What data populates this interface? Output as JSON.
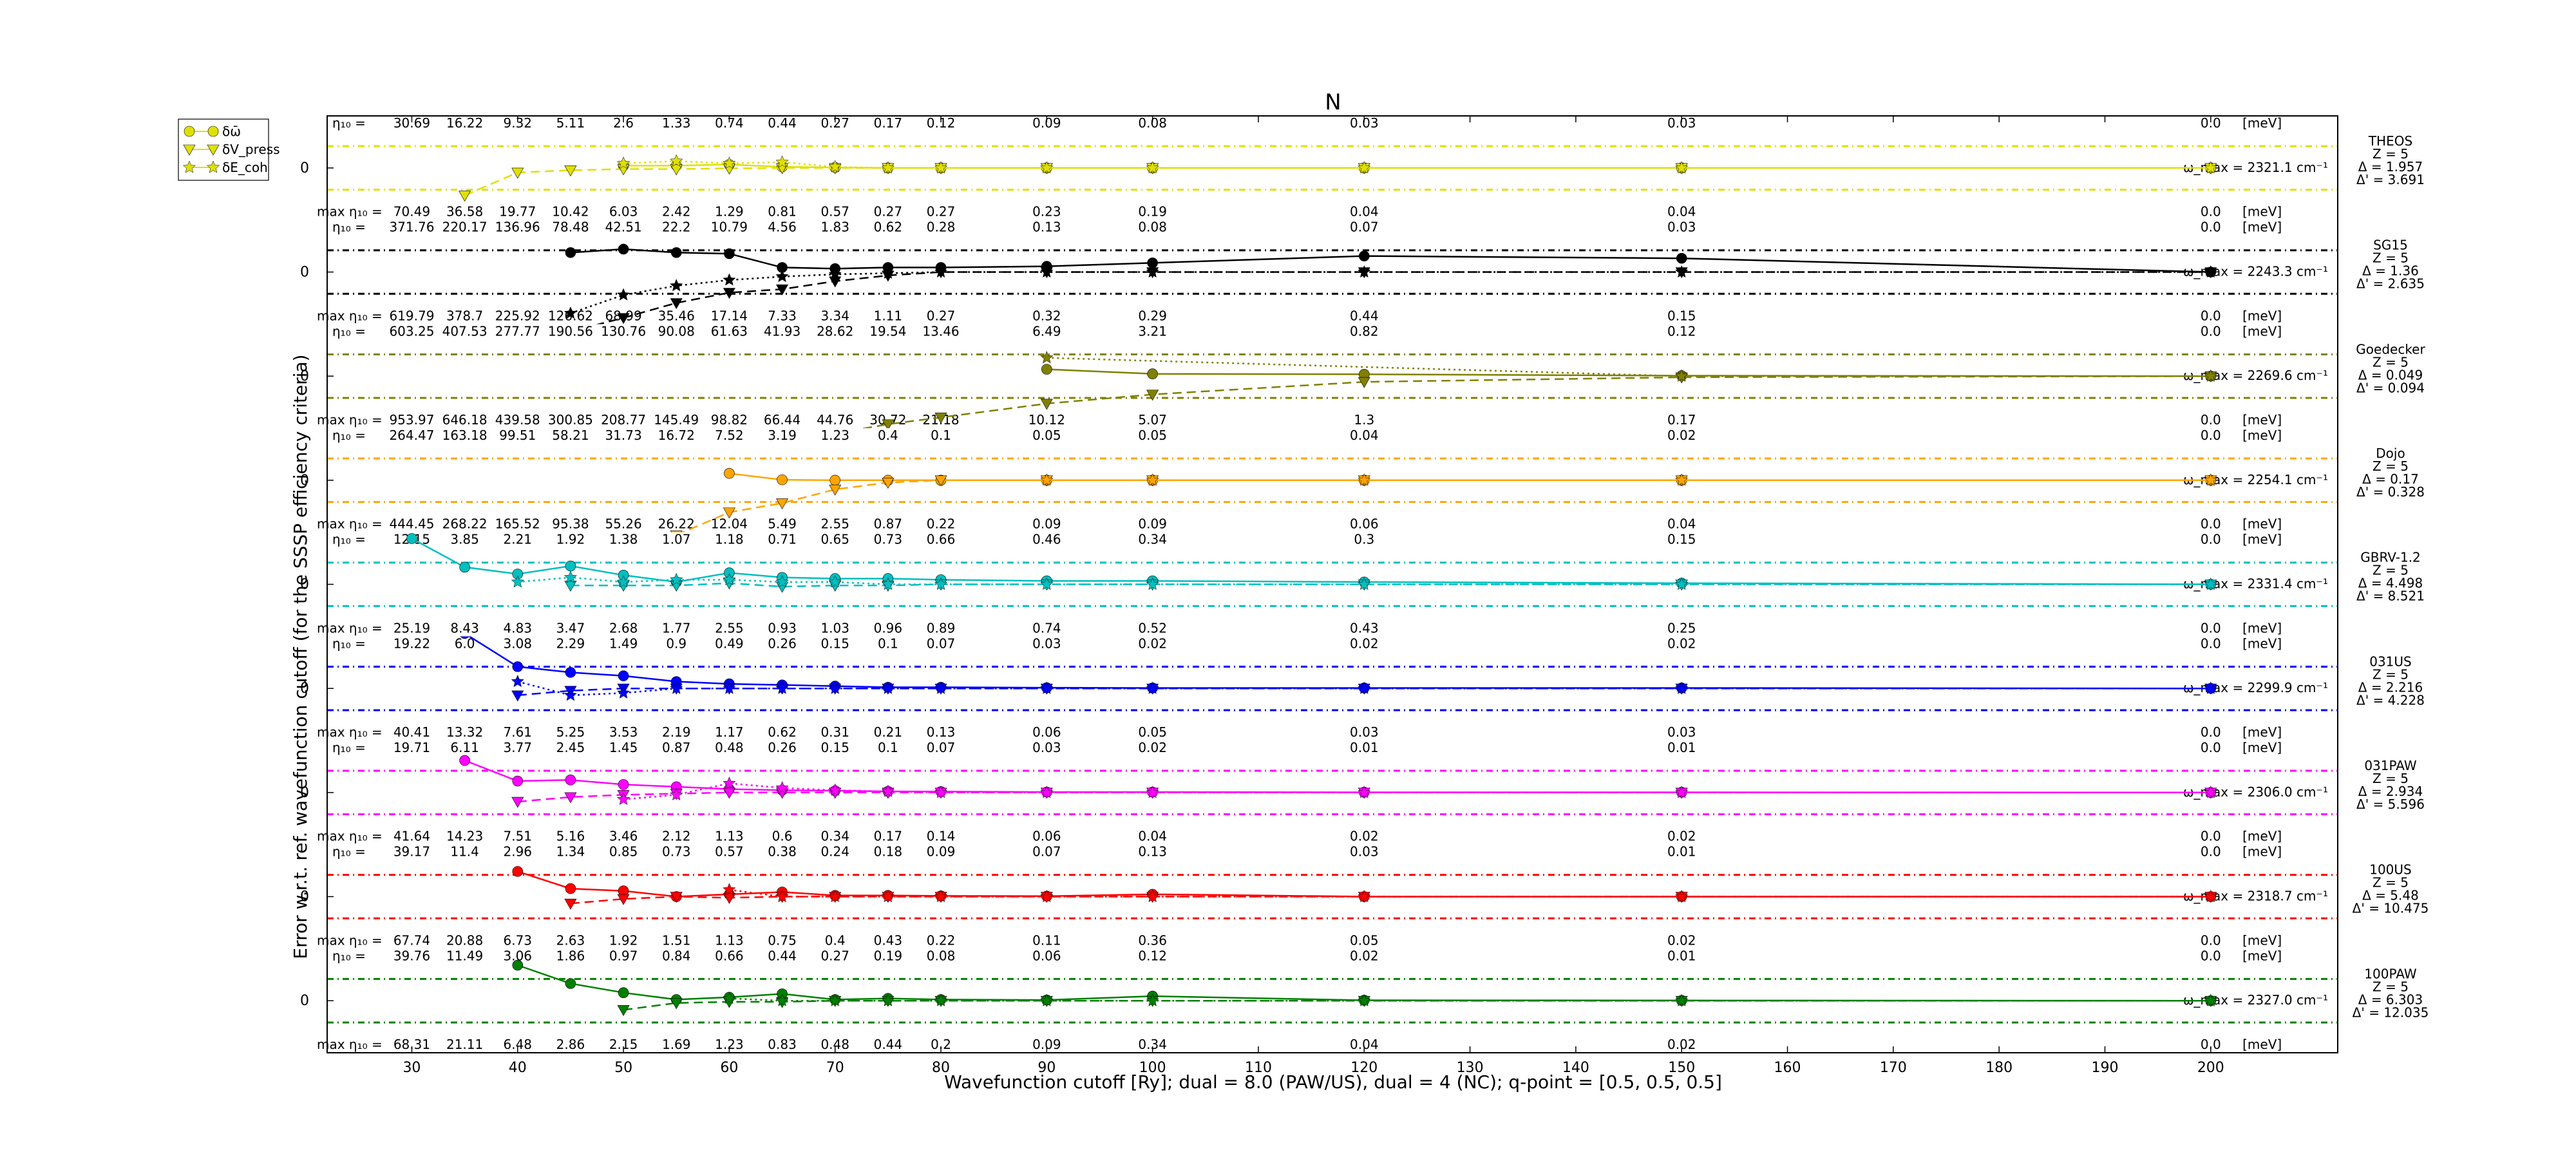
{
  "chart_data": {
    "type": "line",
    "title": "N",
    "xlabel": "Wavefunction cutoff [Ry]; dual = 8.0 (PAW/US), dual = 4 (NC); q-point = [0.5, 0.5, 0.5]",
    "ylabel": "Error w.r.t. ref. wavefunction cutoff (for the SSSP efficiency criteria)",
    "xlim": [
      22,
      212
    ],
    "xticks": [
      30,
      40,
      50,
      60,
      70,
      80,
      90,
      100,
      110,
      120,
      130,
      140,
      150,
      160,
      170,
      180,
      190,
      200
    ],
    "cutoffs": [
      30,
      35,
      40,
      45,
      50,
      55,
      60,
      65,
      70,
      75,
      80,
      90,
      100,
      120,
      150,
      200
    ],
    "legend": {
      "position": "outside-top-left",
      "entries": [
        "δω̄",
        "δV_press",
        "δE_coh"
      ]
    },
    "row_zero_label": "0",
    "unit_label": "[meV]",
    "eta_label": "η₁₀ =",
    "maxeta_label": "max η₁₀ =",
    "series": [
      {
        "name": "THEOS",
        "color": "#e0e000",
        "info": [
          "THEOS",
          "Z = 5",
          "Δ = 1.957",
          "Δ' = 3.691"
        ],
        "wmax": "ω_max = 2321.1 cm⁻¹",
        "eta": [
          "30.69",
          "16.22",
          "9.32",
          "5.11",
          "2.6",
          "1.33",
          "0.74",
          "0.44",
          "0.27",
          "0.17",
          "0.12",
          "0.09",
          "0.08",
          "0.03",
          "0.03",
          "0.0"
        ],
        "maxeta": [
          "70.49",
          "36.58",
          "19.77",
          "10.42",
          "6.03",
          "2.42",
          "1.29",
          "0.81",
          "0.57",
          "0.27",
          "0.27",
          "0.23",
          "0.19",
          "0.04",
          "0.04",
          "0.0"
        ],
        "phonon": [
          null,
          null,
          null,
          null,
          0.1,
          0.1,
          0.15,
          0.05,
          0.02,
          0.0,
          0.0,
          0.0,
          0.0,
          0.0,
          0.0,
          0.0
        ],
        "pressure": [
          null,
          -1.2,
          -0.2,
          -0.1,
          -0.05,
          -0.05,
          -0.02,
          0.0,
          0.0,
          0.0,
          0.0,
          0.0,
          0.0,
          0.0,
          0.0,
          0.0
        ],
        "cohesive": [
          null,
          null,
          null,
          null,
          0.2,
          0.3,
          0.2,
          0.25,
          0.05,
          0.0,
          0.0,
          0.0,
          0.0,
          0.0,
          0.0,
          0.0
        ]
      },
      {
        "name": "SG15",
        "color": "#000000",
        "info": [
          "SG15",
          "Z = 5",
          "Δ = 1.36",
          "Δ' = 2.635"
        ],
        "wmax": "ω_max = 2243.3 cm⁻¹",
        "eta": [
          "371.76",
          "220.17",
          "136.96",
          "78.48",
          "42.51",
          "22.2",
          "10.79",
          "4.56",
          "1.83",
          "0.62",
          "0.28",
          "0.13",
          "0.08",
          "0.07",
          "0.03",
          "0.0"
        ],
        "maxeta": [
          "619.79",
          "378.7",
          "225.92",
          "126.62",
          "68.99",
          "35.46",
          "17.14",
          "7.33",
          "3.34",
          "1.11",
          "0.27",
          "0.32",
          "0.29",
          "0.44",
          "0.15",
          "0.0"
        ],
        "phonon": [
          null,
          null,
          null,
          0.85,
          1.0,
          0.85,
          0.8,
          0.2,
          0.15,
          0.2,
          0.2,
          0.25,
          0.4,
          0.7,
          0.6,
          0.0
        ],
        "pressure": [
          -2.6,
          -2.6,
          -2.6,
          -2.6,
          -2.0,
          -1.35,
          -0.9,
          -0.75,
          -0.4,
          -0.15,
          0.0,
          0.0,
          0.0,
          0.0,
          0.0,
          0.0
        ],
        "cohesive": [
          null,
          null,
          null,
          -1.8,
          -1.0,
          -0.6,
          -0.35,
          -0.2,
          -0.1,
          -0.05,
          0.0,
          0.0,
          0.0,
          0.0,
          0.0,
          0.0
        ]
      },
      {
        "name": "Goedecker",
        "color": "#808000",
        "info": [
          "Goedecker",
          "Z = 5",
          "Δ = 0.049",
          "Δ' = 0.094"
        ],
        "wmax": "ω_max = 2269.6 cm⁻¹",
        "eta": [
          "603.25",
          "407.53",
          "277.77",
          "190.56",
          "130.76",
          "90.08",
          "61.63",
          "41.93",
          "28.62",
          "19.54",
          "13.46",
          "6.49",
          "3.21",
          "0.82",
          "0.12",
          "0.0"
        ],
        "maxeta": [
          "953.97",
          "646.18",
          "439.58",
          "300.85",
          "208.77",
          "145.49",
          "98.82",
          "66.44",
          "44.76",
          "30.72",
          "21.18",
          "10.12",
          "5.07",
          "1.3",
          "0.17",
          "0.0"
        ],
        "phonon": [
          null,
          null,
          null,
          null,
          null,
          null,
          null,
          null,
          null,
          null,
          null,
          0.3,
          0.1,
          0.08,
          0.02,
          0.0
        ],
        "pressure": [
          null,
          null,
          null,
          null,
          null,
          null,
          null,
          null,
          -2.5,
          -2.1,
          -1.8,
          -1.2,
          -0.8,
          -0.25,
          -0.05,
          0.0
        ],
        "cohesive": [
          null,
          null,
          null,
          null,
          null,
          null,
          null,
          null,
          null,
          null,
          null,
          0.8,
          null,
          null,
          0.0,
          0.0
        ]
      },
      {
        "name": "Dojo",
        "color": "#ffa500",
        "info": [
          "Dojo",
          "Z = 5",
          "Δ = 0.17",
          "Δ' = 0.328"
        ],
        "wmax": "ω_max = 2254.1 cm⁻¹",
        "eta": [
          "264.47",
          "163.18",
          "99.51",
          "58.21",
          "31.73",
          "16.72",
          "7.52",
          "3.19",
          "1.23",
          "0.4",
          "0.1",
          "0.05",
          "0.05",
          "0.04",
          "0.02",
          "0.0"
        ],
        "maxeta": [
          "444.45",
          "268.22",
          "165.52",
          "95.38",
          "55.26",
          "26.22",
          "12.04",
          "5.49",
          "2.55",
          "0.87",
          "0.22",
          "0.09",
          "0.09",
          "0.06",
          "0.04",
          "0.0"
        ],
        "phonon": [
          null,
          null,
          null,
          null,
          null,
          null,
          0.3,
          0.02,
          0.0,
          0.0,
          0.0,
          0.0,
          0.0,
          0.0,
          0.0,
          0.0
        ],
        "pressure": [
          null,
          null,
          null,
          null,
          null,
          -2.4,
          -1.4,
          -1.0,
          -0.4,
          -0.1,
          0.0,
          0.0,
          0.0,
          0.0,
          0.0,
          0.0
        ],
        "cohesive": [
          null,
          null,
          null,
          null,
          null,
          null,
          null,
          null,
          null,
          null,
          null,
          0.0,
          0.0,
          0.0,
          0.0,
          0.0
        ]
      },
      {
        "name": "GBRV-1.2",
        "color": "#00bfbf",
        "info": [
          "GBRV-1.2",
          "Z = 5",
          "Δ = 4.498",
          "Δ' = 8.521"
        ],
        "wmax": "ω_max = 2331.4 cm⁻¹",
        "eta": [
          "12.15",
          "3.85",
          "2.21",
          "1.92",
          "1.38",
          "1.07",
          "1.18",
          "0.71",
          "0.65",
          "0.73",
          "0.66",
          "0.46",
          "0.34",
          "0.3",
          "0.15",
          "0.0"
        ],
        "maxeta": [
          "25.19",
          "8.43",
          "4.83",
          "3.47",
          "2.68",
          "1.77",
          "2.55",
          "0.93",
          "1.03",
          "0.96",
          "0.89",
          "0.74",
          "0.52",
          "0.43",
          "0.25",
          "0.0"
        ],
        "phonon": [
          2.0,
          0.75,
          0.45,
          0.8,
          0.4,
          0.1,
          0.5,
          0.3,
          0.25,
          0.25,
          0.2,
          0.15,
          0.15,
          0.1,
          0.05,
          0.0
        ],
        "pressure": [
          null,
          null,
          null,
          -0.05,
          -0.05,
          -0.05,
          0.05,
          -0.1,
          -0.05,
          -0.05,
          0.0,
          0.0,
          0.0,
          0.0,
          0.0,
          0.0
        ],
        "cohesive": [
          null,
          null,
          0.1,
          0.3,
          0.1,
          0.2,
          0.2,
          0.1,
          0.1,
          0.0,
          0.0,
          0.0,
          0.0,
          0.0,
          0.0,
          0.0
        ]
      },
      {
        "name": "031US",
        "color": "#0000ff",
        "info": [
          "031US",
          "Z = 5",
          "Δ = 2.216",
          "Δ' = 4.228"
        ],
        "wmax": "ω_max = 2299.9 cm⁻¹",
        "eta": [
          "19.22",
          "6.0",
          "3.08",
          "2.29",
          "1.49",
          "0.9",
          "0.49",
          "0.26",
          "0.15",
          "0.1",
          "0.07",
          "0.03",
          "0.02",
          "0.02",
          "0.02",
          "0.0"
        ],
        "maxeta": [
          "40.41",
          "13.32",
          "7.61",
          "5.25",
          "3.53",
          "2.19",
          "1.17",
          "0.62",
          "0.31",
          "0.21",
          "0.13",
          "0.06",
          "0.05",
          "0.03",
          "0.03",
          "0.0"
        ],
        "phonon": [
          null,
          2.4,
          0.95,
          0.7,
          0.55,
          0.3,
          0.2,
          0.15,
          0.1,
          0.05,
          0.05,
          0.03,
          0.02,
          0.02,
          0.02,
          0.0
        ],
        "pressure": [
          null,
          null,
          -0.3,
          -0.1,
          0.0,
          0.0,
          0.0,
          0.0,
          0.0,
          0.0,
          0.0,
          0.0,
          0.0,
          0.0,
          0.0,
          0.0
        ],
        "cohesive": [
          null,
          null,
          0.3,
          -0.3,
          -0.2,
          0.0,
          0.0,
          0.0,
          0.0,
          0.0,
          0.0,
          0.0,
          0.0,
          0.0,
          0.0,
          0.0
        ]
      },
      {
        "name": "031PAW",
        "color": "#ff00ff",
        "info": [
          "031PAW",
          "Z = 5",
          "Δ = 2.934",
          "Δ' = 5.596"
        ],
        "wmax": "ω_max = 2306.0 cm⁻¹",
        "eta": [
          "19.71",
          "6.11",
          "3.77",
          "2.45",
          "1.45",
          "0.87",
          "0.48",
          "0.26",
          "0.15",
          "0.1",
          "0.07",
          "0.03",
          "0.02",
          "0.01",
          "0.01",
          "0.0"
        ],
        "maxeta": [
          "41.64",
          "14.23",
          "7.51",
          "5.16",
          "3.46",
          "2.12",
          "1.13",
          "0.6",
          "0.34",
          "0.17",
          "0.14",
          "0.06",
          "0.04",
          "0.02",
          "0.02",
          "0.0"
        ],
        "phonon": [
          null,
          1.4,
          0.5,
          0.55,
          0.35,
          0.25,
          0.15,
          0.1,
          0.08,
          0.05,
          0.04,
          0.02,
          0.02,
          0.01,
          0.01,
          0.0
        ],
        "pressure": [
          null,
          null,
          -0.4,
          -0.2,
          -0.1,
          -0.05,
          0.0,
          0.0,
          0.0,
          0.0,
          0.0,
          0.0,
          0.0,
          0.0,
          0.0,
          0.0
        ],
        "cohesive": [
          null,
          null,
          null,
          null,
          -0.3,
          -0.1,
          0.4,
          0.2,
          0.1,
          0.05,
          0.0,
          0.0,
          0.0,
          0.0,
          0.0,
          0.0
        ]
      },
      {
        "name": "100US",
        "color": "#ff0000",
        "info": [
          "100US",
          "Z = 5",
          "Δ = 5.48",
          "Δ' = 10.475"
        ],
        "wmax": "ω_max = 2318.7 cm⁻¹",
        "eta": [
          "39.17",
          "11.4",
          "2.96",
          "1.34",
          "0.85",
          "0.73",
          "0.57",
          "0.38",
          "0.24",
          "0.18",
          "0.09",
          "0.07",
          "0.13",
          "0.03",
          "0.01",
          "0.0"
        ],
        "maxeta": [
          "67.74",
          "20.88",
          "6.73",
          "2.63",
          "1.92",
          "1.51",
          "1.13",
          "0.75",
          "0.4",
          "0.43",
          "0.22",
          "0.11",
          "0.36",
          "0.05",
          "0.02",
          "0.0"
        ],
        "phonon": [
          null,
          null,
          1.1,
          0.35,
          0.25,
          0.0,
          0.1,
          0.2,
          0.05,
          0.05,
          0.03,
          0.02,
          0.1,
          0.0,
          0.0,
          0.0
        ],
        "pressure": [
          null,
          null,
          null,
          -0.3,
          -0.1,
          0.0,
          -0.05,
          0.0,
          0.0,
          0.0,
          0.0,
          0.0,
          0.0,
          0.0,
          0.0,
          0.0
        ],
        "cohesive": [
          null,
          null,
          null,
          null,
          null,
          null,
          0.3,
          0.0,
          0.0,
          0.0,
          0.0,
          0.0,
          0.0,
          0.0,
          0.0,
          0.0
        ]
      },
      {
        "name": "100PAW",
        "color": "#008000",
        "info": [
          "100PAW",
          "Z = 5",
          "Δ = 6.303",
          "Δ' = 12.035"
        ],
        "wmax": "ω_max = 2327.0 cm⁻¹",
        "eta": [
          "39.76",
          "11.49",
          "3.06",
          "1.86",
          "0.97",
          "0.84",
          "0.66",
          "0.44",
          "0.27",
          "0.19",
          "0.08",
          "0.06",
          "0.12",
          "0.02",
          "0.01",
          "0.0"
        ],
        "maxeta": [
          "68.31",
          "21.11",
          "6.48",
          "2.86",
          "2.15",
          "1.69",
          "1.23",
          "0.83",
          "0.48",
          "0.44",
          "0.2",
          "0.09",
          "0.34",
          "0.04",
          "0.02",
          "0.0"
        ],
        "phonon": [
          null,
          null,
          1.55,
          0.75,
          0.35,
          0.05,
          0.15,
          0.3,
          0.05,
          0.1,
          0.05,
          0.03,
          0.2,
          0.02,
          0.01,
          0.0
        ],
        "pressure": [
          null,
          null,
          null,
          null,
          -0.4,
          -0.1,
          -0.05,
          -0.05,
          0.0,
          0.0,
          0.0,
          0.0,
          0.0,
          0.0,
          0.0,
          0.0
        ],
        "cohesive": [
          null,
          null,
          null,
          null,
          null,
          null,
          0.1,
          0.0,
          0.0,
          0.0,
          0.0,
          0.0,
          0.0,
          0.0,
          0.0,
          0.0
        ]
      }
    ]
  }
}
